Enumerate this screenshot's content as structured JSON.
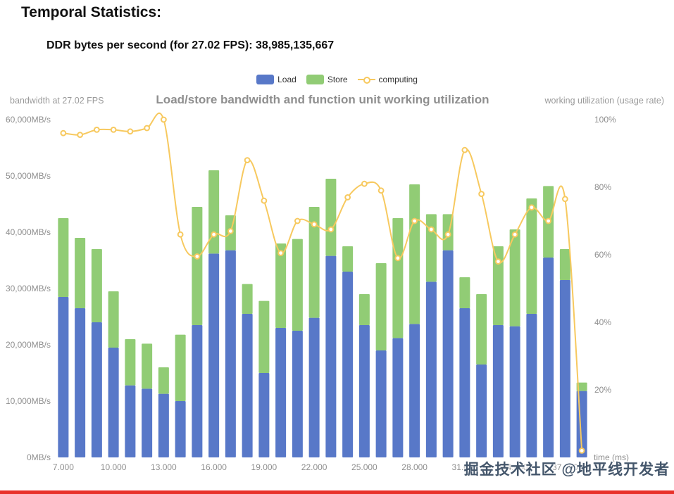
{
  "header": {
    "title": "Temporal Statistics:",
    "subtitle": "DDR bytes per second (for 27.02 FPS): 38,985,135,667"
  },
  "chart": {
    "title": "Load/store bandwidth and function unit working utilization",
    "left_axis_name": "bandwidth at 27.02 FPS",
    "right_axis_name": "working utilization (usage rate)",
    "legend": [
      {
        "label": "Load",
        "type": "bar",
        "color": "#5878c8"
      },
      {
        "label": "Store",
        "type": "bar",
        "color": "#91cc75"
      },
      {
        "label": "computing",
        "type": "line",
        "color": "#f7c95f"
      }
    ]
  },
  "chart_data": {
    "type": "bar",
    "stacked": true,
    "title": "Load/store bandwidth and function unit working utilization",
    "x": [
      7,
      8,
      9,
      10,
      11,
      12,
      13,
      14,
      15,
      16,
      17,
      18,
      19,
      20,
      21,
      22,
      23,
      24,
      25,
      26,
      27,
      28,
      29,
      30,
      31,
      32,
      33,
      34,
      35,
      36,
      37,
      38
    ],
    "x_tick_every": 3,
    "x_tick_labels": [
      "7.000",
      "10.000",
      "13.000",
      "16.000",
      "19.000",
      "22.000",
      "25.000",
      "28.000",
      "31.000",
      "34.000",
      "37.000"
    ],
    "x_axis": {
      "label": "time (ms)"
    },
    "left_axis": {
      "label": "bandwidth at 27.02 FPS",
      "unit": "MB/s",
      "range": [
        0,
        60000
      ],
      "ticks": [
        0,
        10000,
        20000,
        30000,
        40000,
        50000,
        60000
      ],
      "tick_labels": [
        "0MB/s",
        "10,000MB/s",
        "20,000MB/s",
        "30,000MB/s",
        "40,000MB/s",
        "50,000MB/s",
        "60,000MB/s"
      ]
    },
    "right_axis": {
      "label": "working utilization (usage rate)",
      "unit": "%",
      "range": [
        0,
        100
      ],
      "ticks": [
        0,
        20,
        40,
        60,
        80,
        100
      ],
      "tick_labels": [
        "0%",
        "20%",
        "40%",
        "60%",
        "80%",
        "100%"
      ]
    },
    "series": [
      {
        "name": "Load",
        "type": "bar",
        "color": "#5878c8",
        "values": [
          28500,
          26500,
          24000,
          19500,
          12800,
          12200,
          11300,
          10000,
          23500,
          36200,
          36800,
          25500,
          15000,
          23000,
          22500,
          24800,
          35800,
          33000,
          23500,
          19000,
          21200,
          23700,
          31200,
          36800,
          26500,
          16500,
          23500,
          23300,
          25500,
          35500,
          31500,
          11800
        ]
      },
      {
        "name": "Store",
        "type": "bar",
        "color": "#91cc75",
        "values": [
          14000,
          12500,
          13000,
          10000,
          8200,
          8000,
          4700,
          11800,
          21000,
          14800,
          6200,
          5300,
          12800,
          15000,
          16300,
          19700,
          13700,
          4500,
          5500,
          15500,
          21300,
          24800,
          12000,
          6400,
          5500,
          12500,
          14000,
          17200,
          20500,
          12700,
          5500,
          1500
        ]
      },
      {
        "name": "computing",
        "type": "line",
        "yaxis": "right",
        "color": "#f7c95f",
        "values": [
          96,
          95.5,
          97,
          97,
          96.5,
          97.5,
          100,
          66,
          59.5,
          66,
          67,
          88,
          76,
          60.5,
          70,
          69,
          67.5,
          77,
          81,
          79,
          59,
          70,
          67.5,
          66,
          91,
          78,
          58,
          66,
          74,
          70,
          76.5,
          2
        ]
      }
    ],
    "legend_position": "top-center",
    "grid": false
  },
  "watermark": "掘金技术社区 @地平线开发者",
  "colors": {
    "load": "#5878c8",
    "store": "#91cc75",
    "computing": "#f7c95f",
    "watermark": "#44566b",
    "bottom_bar": "#e8312a"
  }
}
